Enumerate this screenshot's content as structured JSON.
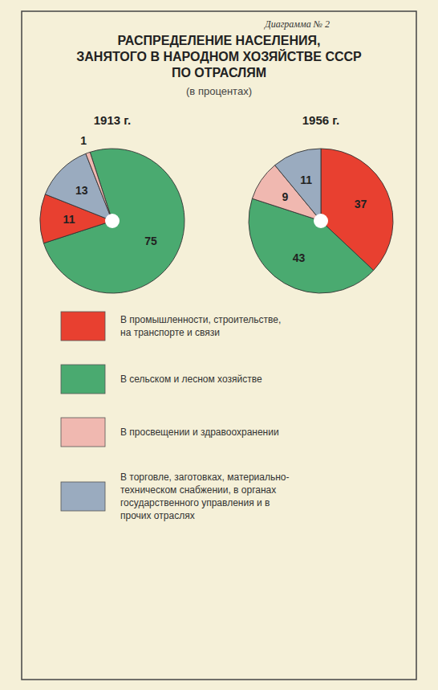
{
  "chart_data": {
    "type": "pie",
    "title": "РАСПРЕДЕЛЕНИЕ НАСЕЛЕНИЯ,\nЗАНЯТОГО В НАРОДНОМ ХОЗЯЙСТВЕ СССР\nПО ОТРАСЛЯМ",
    "subtitle": "(в процентах)",
    "annotations": [
      "Диаграмма № 2"
    ],
    "data_labels": true,
    "legend": "bottom",
    "categories": [
      "В промышленности, строительстве,\nна транспорте и связи",
      "В сельском и лесном хозяйстве",
      "В просвещении и здравоохранении",
      "В торговле, заготовках, материально-\nтехническом снабжении, в органах\nгосударственного управления и в\nпрочих отраслях"
    ],
    "colors": [
      "#e84030",
      "#4aaa70",
      "#f0b8b0",
      "#9aabbf"
    ],
    "series": [
      {
        "name": "1913 г.",
        "values": [
          75,
          11,
          13,
          1
        ],
        "colors": [
          "#4aaa70",
          "#e84030",
          "#9aabbf",
          "#f0b8b0"
        ]
      },
      {
        "name": "1956 г.",
        "values": [
          37,
          43,
          9,
          11
        ],
        "colors": [
          "#e84030",
          "#4aaa70",
          "#f0b8b0",
          "#9aabbf"
        ]
      }
    ]
  }
}
